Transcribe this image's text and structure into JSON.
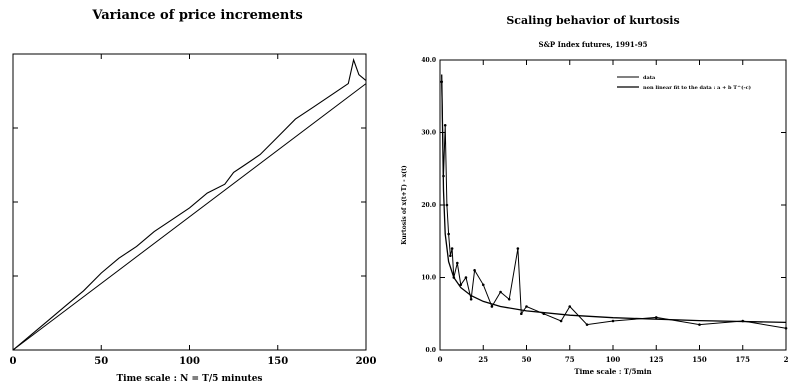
{
  "chart_data": [
    {
      "type": "line",
      "title": "Variance of price increments",
      "xlabel": "Time scale : N = T/5 minutes",
      "ylabel": "",
      "xlim": [
        0,
        200
      ],
      "ylim": [
        0,
        1
      ],
      "x_ticks": [
        "0",
        "50",
        "100",
        "150",
        "200"
      ],
      "y_ticks": [],
      "series": [
        {
          "x": [
            0,
            10,
            20,
            30,
            40,
            50,
            60,
            70,
            80,
            90,
            100,
            110,
            120,
            125,
            130,
            140,
            150,
            160,
            170,
            180,
            190,
            193,
            196,
            200
          ],
          "y": [
            0,
            0.05,
            0.1,
            0.15,
            0.2,
            0.26,
            0.31,
            0.35,
            0.4,
            0.44,
            0.48,
            0.53,
            0.56,
            0.6,
            0.62,
            0.66,
            0.72,
            0.78,
            0.82,
            0.86,
            0.9,
            0.98,
            0.93,
            0.91
          ]
        },
        {
          "x": [
            0,
            200
          ],
          "y": [
            0,
            0.9
          ]
        }
      ]
    },
    {
      "type": "line",
      "title": "Scaling behavior of kurtosis",
      "subtitle": "S&P Index futures, 1991-95",
      "xlabel": "Time scale : T/5min",
      "ylabel": "Kurtosis of  x(t+T) - x(t)",
      "xlim": [
        0,
        200
      ],
      "ylim": [
        0,
        40
      ],
      "x_ticks": [
        "0",
        "25",
        "50",
        "75",
        "100",
        "125",
        "150",
        "175",
        "2"
      ],
      "y_ticks": [
        "0.0",
        "10.0",
        "20.0",
        "30.0",
        "40.0"
      ],
      "legend_position": "top-right",
      "series": [
        {
          "name": "data",
          "x": [
            1,
            2,
            3,
            4,
            5,
            6,
            7,
            8,
            10,
            12,
            15,
            18,
            20,
            25,
            30,
            35,
            40,
            45,
            47,
            50,
            60,
            70,
            75,
            85,
            100,
            125,
            150,
            175,
            200
          ],
          "y": [
            37,
            24,
            31,
            20,
            16,
            13,
            14,
            10,
            12,
            9,
            10,
            7,
            11,
            9,
            6,
            8,
            7,
            14,
            5,
            6,
            5,
            4,
            6,
            3.5,
            4,
            4.5,
            3.5,
            4,
            3
          ]
        },
        {
          "name": "non linear fit to the data : a + b T^(-c)",
          "x": [
            1,
            2,
            3,
            5,
            8,
            12,
            18,
            25,
            35,
            50,
            75,
            100,
            150,
            200
          ],
          "y": [
            38,
            22,
            16,
            12.2,
            10,
            8.6,
            7.5,
            6.7,
            6,
            5.4,
            4.8,
            4.45,
            4.05,
            3.8
          ]
        }
      ]
    }
  ]
}
